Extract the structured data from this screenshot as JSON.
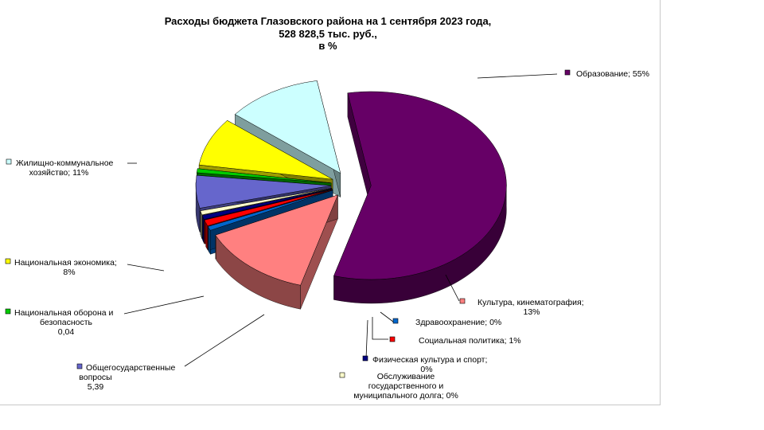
{
  "chart_data": {
    "type": "pie",
    "title_lines": [
      "Расходы бюджета Глазовского района на 1 сентября 2023 года,",
      "528 828,5 тыс. руб.,",
      "в %"
    ],
    "slices": [
      {
        "name": "Образование",
        "value": 55,
        "value_label": "55%",
        "color": "#660066",
        "label_lines": [
          "Образование;  55%"
        ]
      },
      {
        "name": "Культура, кинематография",
        "value": 13,
        "value_label": "13%",
        "color": "#ff8080",
        "label_lines": [
          "Культура, кинематография;",
          "13%"
        ]
      },
      {
        "name": "Здравоохранение",
        "value": 0.3,
        "value_label": "0%",
        "color": "#0066cc",
        "label_lines": [
          "Здравоохранение;  0%"
        ]
      },
      {
        "name": "Социальная политика",
        "value": 1,
        "value_label": "1%",
        "color": "#ff0000",
        "label_lines": [
          "Социальная  политика;  1%"
        ]
      },
      {
        "name": "Физическая культура и спорт",
        "value": 0.3,
        "value_label": "0%",
        "color": "#000080",
        "label_lines": [
          "Физическая  культура и спорт;",
          "0%"
        ]
      },
      {
        "name": "Обслуживание государственного и муниципального долга",
        "value": 0.3,
        "value_label": "0%",
        "color": "#ffffcc",
        "label_lines": [
          "Обслуживание",
          "государственного и",
          "муниципального  долга;  0%"
        ]
      },
      {
        "name": "Общегосударственные вопросы",
        "value": 5.39,
        "value_label": "5,39",
        "color": "#6666cc",
        "label_lines": [
          "Общегосударственные",
          "вопросы",
          "5,39"
        ]
      },
      {
        "name": "Национальная оборона и безопасность",
        "value": 0.04,
        "value_label": "0,04",
        "color": "#00cc00",
        "label_lines": [
          "Национальная  оборона  и",
          "безопасность",
          "0,04"
        ]
      },
      {
        "name": "Национальная экономика",
        "value": 8,
        "value_label": "8%",
        "color": "#ffff00",
        "label_lines": [
          "Национальная  экономика;",
          "8%"
        ]
      },
      {
        "name": "Жилищно-коммунальное хозяйство",
        "value": 11,
        "value_label": "11%",
        "color": "#ccffff",
        "label_lines": [
          "Жилищно-коммунальное",
          "хозяйство; 11%"
        ]
      }
    ]
  }
}
